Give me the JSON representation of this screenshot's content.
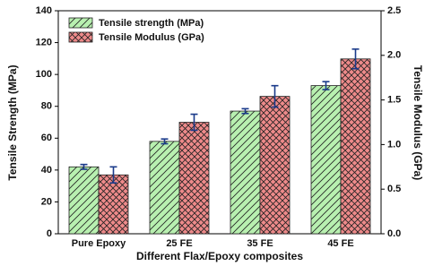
{
  "chart_data": {
    "type": "bar",
    "x_label": "Different Flax/Epoxy composites",
    "y_label": "Tensile Strength (MPa)",
    "y2_label": "Tensile Modulus (GPa)",
    "categories": [
      "Pure Epoxy",
      "25 FE",
      "35 FE",
      "45 FE"
    ],
    "series": [
      {
        "name": "Tensile strength (MPa)",
        "color": "#b8f0b0",
        "pattern": "diagonal",
        "values": [
          42,
          58,
          77,
          93
        ],
        "errors": [
          1.5,
          1.5,
          1.5,
          2.5
        ]
      },
      {
        "name": "Tensile Modulus (GPa)",
        "color": "#ee8a8a",
        "pattern": "crosshatch",
        "axis": "y2",
        "values": [
          0.66,
          1.25,
          1.54,
          1.96
        ],
        "errors": [
          0.09,
          0.09,
          0.12,
          0.11
        ]
      }
    ],
    "error_color": "#1a3a8a",
    "ylim": [
      0,
      140
    ],
    "yticks": [
      0,
      20,
      40,
      60,
      80,
      100,
      120,
      140
    ],
    "y2lim": [
      0,
      2.5
    ],
    "y2ticks": [
      {
        "value": 0,
        "label": "0.0"
      },
      0.5,
      {
        "value": 1,
        "label": "1.0"
      },
      1.5,
      {
        "value": 2,
        "label": "2.0"
      },
      2.5
    ],
    "legend": "top-left"
  }
}
